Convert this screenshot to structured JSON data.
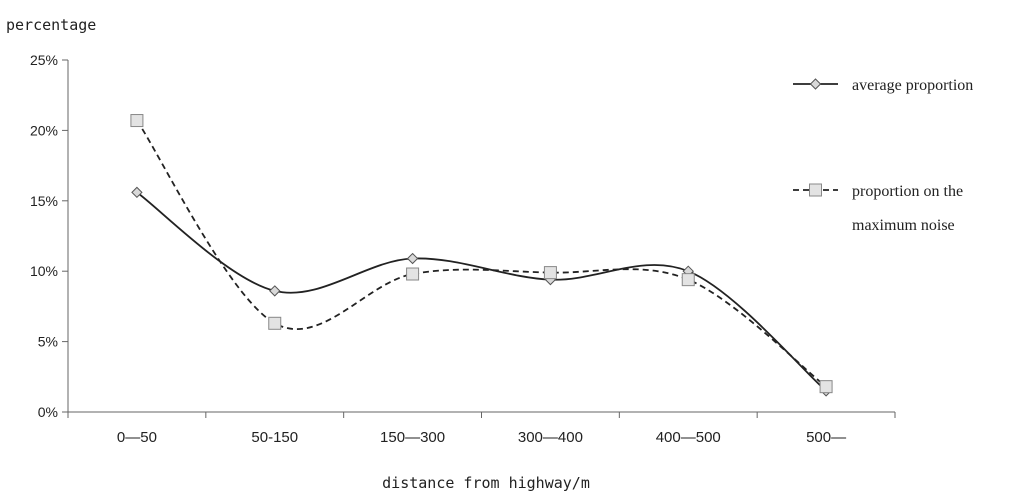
{
  "chart_data": {
    "type": "line",
    "title": "",
    "ylabel": "percentage",
    "xlabel": "distance from highway/m",
    "categories": [
      "0—50",
      "50-150",
      "150—300",
      "300—400",
      "400—500",
      "500—"
    ],
    "yticks": [
      "0%",
      "5%",
      "10%",
      "15%",
      "20%",
      "25%"
    ],
    "ylim": [
      0,
      25
    ],
    "series": [
      {
        "name": "average proportion",
        "values": [
          15.6,
          8.6,
          10.9,
          9.4,
          10.0,
          1.5
        ],
        "line_style": "solid",
        "marker": "diamond",
        "color": "#222222"
      },
      {
        "name": "proportion on the maximum noise",
        "values": [
          20.7,
          6.3,
          9.8,
          9.9,
          9.4,
          1.8
        ],
        "line_style": "dashed",
        "marker": "square",
        "color": "#222222"
      }
    ],
    "legend": {
      "placement": "right",
      "entries": [
        {
          "lines": [
            "average proportion"
          ]
        },
        {
          "lines": [
            "proportion on the",
            "maximum noise"
          ]
        }
      ]
    },
    "grid": false
  }
}
